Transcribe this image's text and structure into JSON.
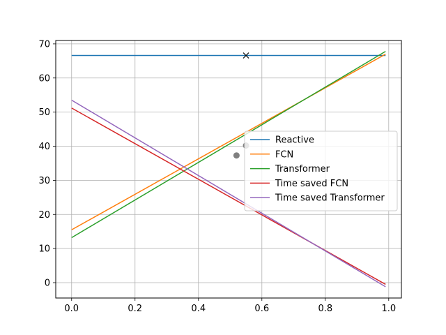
{
  "chart_data": {
    "type": "line",
    "title": "",
    "xlabel": "",
    "ylabel": "",
    "xlim": [
      -0.05,
      1.04
    ],
    "ylim": [
      -4.5,
      71
    ],
    "x_ticks": [
      0.0,
      0.2,
      0.4,
      0.6,
      0.8,
      1.0
    ],
    "x_tick_labels": [
      "0.0",
      "0.2",
      "0.4",
      "0.6",
      "0.8",
      "1.0"
    ],
    "y_ticks": [
      0,
      10,
      20,
      30,
      40,
      50,
      60,
      70
    ],
    "y_tick_labels": [
      "0",
      "10",
      "20",
      "30",
      "40",
      "50",
      "60",
      "70"
    ],
    "grid": true,
    "legend_position": "center-right",
    "series": [
      {
        "name": "Reactive",
        "color": "#1f77b4",
        "x": [
          0.0,
          0.99
        ],
        "y": [
          66.6,
          66.6
        ]
      },
      {
        "name": "FCN",
        "color": "#ff7f0e",
        "x": [
          0.0,
          0.99
        ],
        "y": [
          15.5,
          67.0
        ]
      },
      {
        "name": "Transformer",
        "color": "#2ca02c",
        "x": [
          0.0,
          0.99
        ],
        "y": [
          13.2,
          67.8
        ]
      },
      {
        "name": "Time saved FCN",
        "color": "#d62728",
        "x": [
          0.0,
          0.99
        ],
        "y": [
          51.2,
          -0.5
        ]
      },
      {
        "name": "Time saved Transformer",
        "color": "#9467bd",
        "x": [
          0.0,
          0.99
        ],
        "y": [
          53.5,
          -1.2
        ]
      }
    ],
    "markers": [
      {
        "name": "x-marker",
        "shape": "x",
        "color": "#000000",
        "x": 0.55,
        "y": 66.6
      },
      {
        "name": "point-1",
        "shape": "circle",
        "color": "#808080",
        "x": 0.52,
        "y": 37.3
      },
      {
        "name": "point-2",
        "shape": "circle",
        "color": "#808080",
        "x": 0.55,
        "y": 40.2
      }
    ]
  }
}
